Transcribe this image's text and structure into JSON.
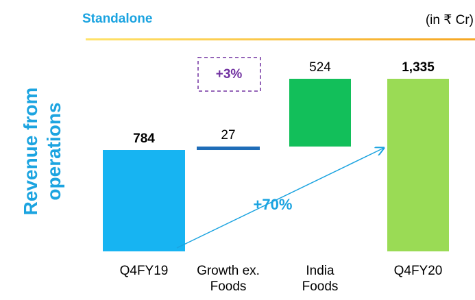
{
  "chart_data": {
    "type": "waterfall",
    "title": "Standalone",
    "subtitle": "(in ₹ Cr)",
    "y_label": "Revenue from operations",
    "categories": [
      "Q4FY19",
      "Growth ex. Foods",
      "India Foods",
      "Q4FY20"
    ],
    "values": [
      784,
      27,
      524,
      1335
    ],
    "value_labels": [
      "784",
      "27",
      "524",
      "1,335"
    ],
    "measure": [
      "absolute",
      "relative",
      "relative",
      "total"
    ],
    "colors": [
      "#17b4f2",
      "#1f6db8",
      "#12bf5a",
      "#9adb55"
    ],
    "annotations": [
      "+3%",
      "+70%"
    ]
  }
}
